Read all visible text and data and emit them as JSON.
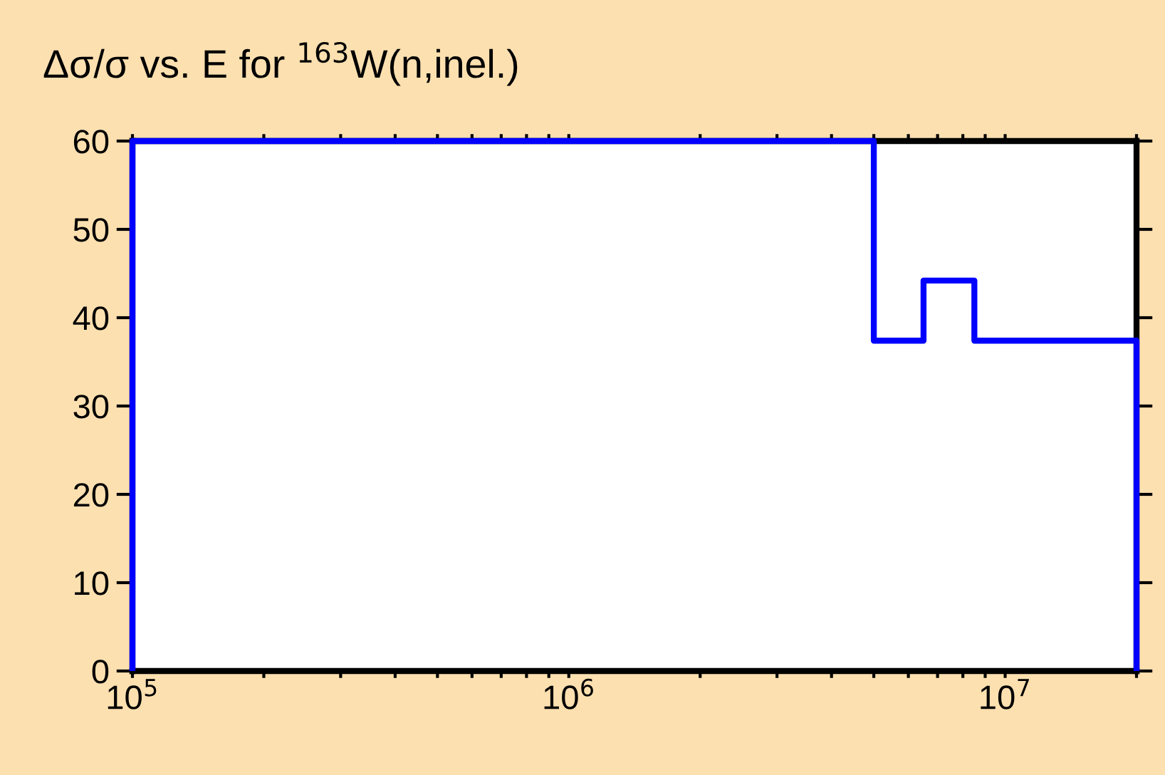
{
  "chart_data": {
    "type": "histogram",
    "title": "Δσ/σ vs. E for $^{163}$W(n,inel.)",
    "bins": [
      100000,
      5000000,
      6500000,
      8500000,
      20000000
    ],
    "values": [
      60,
      37.4,
      44.2,
      37.4
    ],
    "color": "#0000ff",
    "log": "x",
    "xlim": [
      100000,
      20000000
    ],
    "ylim": [
      0,
      60
    ],
    "yticks": [
      0,
      10,
      20,
      30,
      40,
      50,
      60
    ],
    "xticks": [
      {
        "value": 100000,
        "label": "10$^{5}$"
      },
      {
        "value": 200000,
        "label": null
      },
      {
        "value": 300000,
        "label": null
      },
      {
        "value": 400000,
        "label": null
      },
      {
        "value": 500000,
        "label": null
      },
      {
        "value": 600000,
        "label": null
      },
      {
        "value": 700000,
        "label": null
      },
      {
        "value": 800000,
        "label": null
      },
      {
        "value": 900000,
        "label": null
      },
      {
        "value": 1000000,
        "label": "10$^{6}$"
      },
      {
        "value": 2000000,
        "label": null
      },
      {
        "value": 3000000,
        "label": null
      },
      {
        "value": 4000000,
        "label": null
      },
      {
        "value": 5000000,
        "label": null
      },
      {
        "value": 6000000,
        "label": null
      },
      {
        "value": 7000000,
        "label": null
      },
      {
        "value": 8000000,
        "label": null
      },
      {
        "value": 9000000,
        "label": null
      },
      {
        "value": 10000000,
        "label": "10$^{7}$"
      },
      {
        "value": 20000000,
        "label": null
      }
    ],
    "grid": false,
    "legend": false
  }
}
